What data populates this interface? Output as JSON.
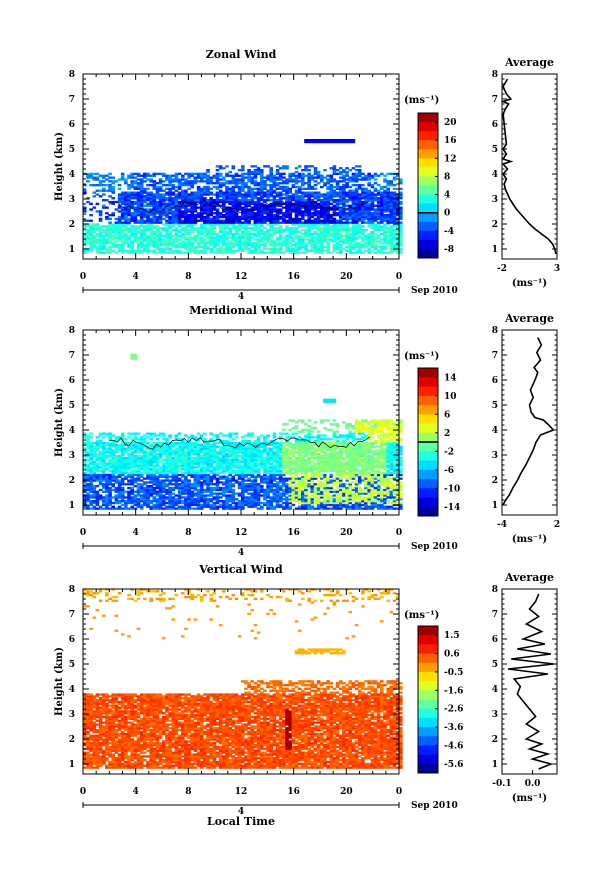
{
  "chart_data": [
    {
      "type": "heatmap",
      "title": "Zonal Wind",
      "ylabel": "Height (km)",
      "xlabel": "",
      "x_ticks": [
        "0",
        "4",
        "8",
        "12",
        "16",
        "20",
        "0"
      ],
      "y_ticks": [
        "1",
        "2",
        "3",
        "4",
        "5",
        "6",
        "7",
        "8"
      ],
      "xlim": [
        0,
        24
      ],
      "ylim": [
        0.6,
        8.0
      ],
      "date_label": "Sep 2010",
      "day_label": "4",
      "colorbar": {
        "unit": "(ms⁻¹)",
        "ticks": [
          "20",
          "16",
          "12",
          "8",
          "4",
          "0",
          "-4",
          "-8"
        ],
        "range": [
          -10,
          22
        ],
        "contour_level": 0
      },
      "profile": {
        "title": "Average",
        "xlabel": "(ms⁻¹)",
        "x_ticks": [
          "-2",
          "3"
        ],
        "xlim": [
          -2,
          3
        ],
        "y_ticks": [
          "1",
          "2",
          "3",
          "4",
          "5",
          "6",
          "7",
          "8"
        ],
        "points": [
          [
            2.9,
            0.8
          ],
          [
            2.8,
            1.0
          ],
          [
            2.6,
            1.2
          ],
          [
            2.2,
            1.4
          ],
          [
            1.6,
            1.6
          ],
          [
            1.0,
            1.8
          ],
          [
            0.5,
            2.0
          ],
          [
            0.1,
            2.2
          ],
          [
            -0.3,
            2.4
          ],
          [
            -0.7,
            2.6
          ],
          [
            -1.0,
            2.8
          ],
          [
            -1.3,
            3.0
          ],
          [
            -1.5,
            3.2
          ],
          [
            -1.7,
            3.4
          ],
          [
            -1.8,
            3.6
          ],
          [
            -1.6,
            3.8
          ],
          [
            -1.9,
            4.0
          ],
          [
            -1.5,
            4.2
          ],
          [
            -1.9,
            4.4
          ],
          [
            -1.2,
            4.5
          ],
          [
            -1.9,
            4.6
          ],
          [
            -1.6,
            4.8
          ],
          [
            -1.9,
            5.0
          ],
          [
            -1.6,
            5.2
          ],
          [
            -1.9,
            6.4
          ],
          [
            -1.7,
            6.6
          ],
          [
            -1.4,
            6.8
          ],
          [
            -1.9,
            6.9
          ],
          [
            -1.2,
            7.0
          ],
          [
            -1.6,
            7.2
          ],
          [
            -1.9,
            7.5
          ],
          [
            -1.5,
            7.8
          ]
        ]
      }
    },
    {
      "type": "heatmap",
      "title": "Meridional Wind",
      "ylabel": "Height (km)",
      "xlabel": "",
      "x_ticks": [
        "0",
        "4",
        "8",
        "12",
        "16",
        "20",
        "0"
      ],
      "y_ticks": [
        "1",
        "2",
        "3",
        "4",
        "5",
        "6",
        "7",
        "8"
      ],
      "xlim": [
        0,
        24
      ],
      "ylim": [
        0.6,
        8.0
      ],
      "date_label": "Sep 2010",
      "day_label": "4",
      "colorbar": {
        "unit": "(ms⁻¹)",
        "ticks": [
          "14",
          "10",
          "6",
          "2",
          "-2",
          "-6",
          "-10",
          "-14"
        ],
        "range": [
          -16,
          16
        ],
        "contour_level": 0
      },
      "profile": {
        "title": "Average",
        "xlabel": "(ms⁻¹)",
        "x_ticks": [
          "-4",
          "2"
        ],
        "xlim": [
          -4,
          2
        ],
        "y_ticks": [
          "1",
          "2",
          "3",
          "4",
          "5",
          "6",
          "7",
          "8"
        ],
        "points": [
          [
            -3.9,
            1.0
          ],
          [
            -3.6,
            1.2
          ],
          [
            -3.2,
            1.4
          ],
          [
            -2.8,
            1.7
          ],
          [
            -2.3,
            2.0
          ],
          [
            -1.9,
            2.3
          ],
          [
            -1.4,
            2.6
          ],
          [
            -1.0,
            2.9
          ],
          [
            -0.6,
            3.2
          ],
          [
            -0.3,
            3.5
          ],
          [
            0.2,
            3.8
          ],
          [
            1.6,
            4.0
          ],
          [
            1.1,
            4.2
          ],
          [
            0.5,
            4.4
          ],
          [
            -0.4,
            4.5
          ],
          [
            -0.8,
            4.7
          ],
          [
            -1.0,
            5.0
          ],
          [
            -0.6,
            5.3
          ],
          [
            -0.9,
            5.6
          ],
          [
            -0.4,
            6.0
          ],
          [
            -0.1,
            6.3
          ],
          [
            -0.5,
            6.5
          ],
          [
            0.2,
            6.8
          ],
          [
            -0.2,
            7.1
          ],
          [
            0.3,
            7.4
          ],
          [
            -0.1,
            7.7
          ]
        ]
      }
    },
    {
      "type": "heatmap",
      "title": "Vertical Wind",
      "ylabel": "Height (km)",
      "xlabel": "Local Time",
      "x_ticks": [
        "0",
        "4",
        "8",
        "12",
        "16",
        "20",
        "0"
      ],
      "y_ticks": [
        "1",
        "2",
        "3",
        "4",
        "5",
        "6",
        "7",
        "8"
      ],
      "xlim": [
        0,
        24
      ],
      "ylim": [
        0.6,
        8.0
      ],
      "date_label": "Sep 2010",
      "day_label": "4",
      "colorbar": {
        "unit": "(ms⁻¹)",
        "ticks": [
          "1.5",
          "0.6",
          "-0.5",
          "-1.6",
          "-2.6",
          "-3.6",
          "-4.6",
          "-5.6"
        ],
        "range": [
          -6.0,
          2.0
        ]
      },
      "profile": {
        "title": "Average",
        "xlabel": "(ms⁻¹)",
        "x_ticks": [
          "-0.1",
          "0.0"
        ],
        "xlim": [
          -0.1,
          0.08
        ],
        "y_ticks": [
          "1",
          "2",
          "3",
          "4",
          "5",
          "6",
          "7",
          "8"
        ],
        "points": [
          [
            0.02,
            0.8
          ],
          [
            0.06,
            1.0
          ],
          [
            0.0,
            1.2
          ],
          [
            0.05,
            1.4
          ],
          [
            -0.01,
            1.6
          ],
          [
            0.03,
            1.8
          ],
          [
            -0.02,
            2.0
          ],
          [
            0.02,
            2.3
          ],
          [
            -0.02,
            2.6
          ],
          [
            0.01,
            2.9
          ],
          [
            -0.01,
            3.2
          ],
          [
            -0.03,
            3.5
          ],
          [
            -0.05,
            3.8
          ],
          [
            -0.04,
            4.1
          ],
          [
            -0.06,
            4.4
          ],
          [
            0.05,
            4.6
          ],
          [
            -0.08,
            4.8
          ],
          [
            0.07,
            5.0
          ],
          [
            -0.07,
            5.2
          ],
          [
            0.06,
            5.4
          ],
          [
            -0.05,
            5.6
          ],
          [
            0.04,
            5.8
          ],
          [
            -0.03,
            6.0
          ],
          [
            0.03,
            6.3
          ],
          [
            -0.02,
            6.6
          ],
          [
            0.02,
            6.9
          ],
          [
            -0.01,
            7.2
          ],
          [
            0.01,
            7.5
          ],
          [
            0.02,
            7.8
          ]
        ]
      }
    }
  ]
}
